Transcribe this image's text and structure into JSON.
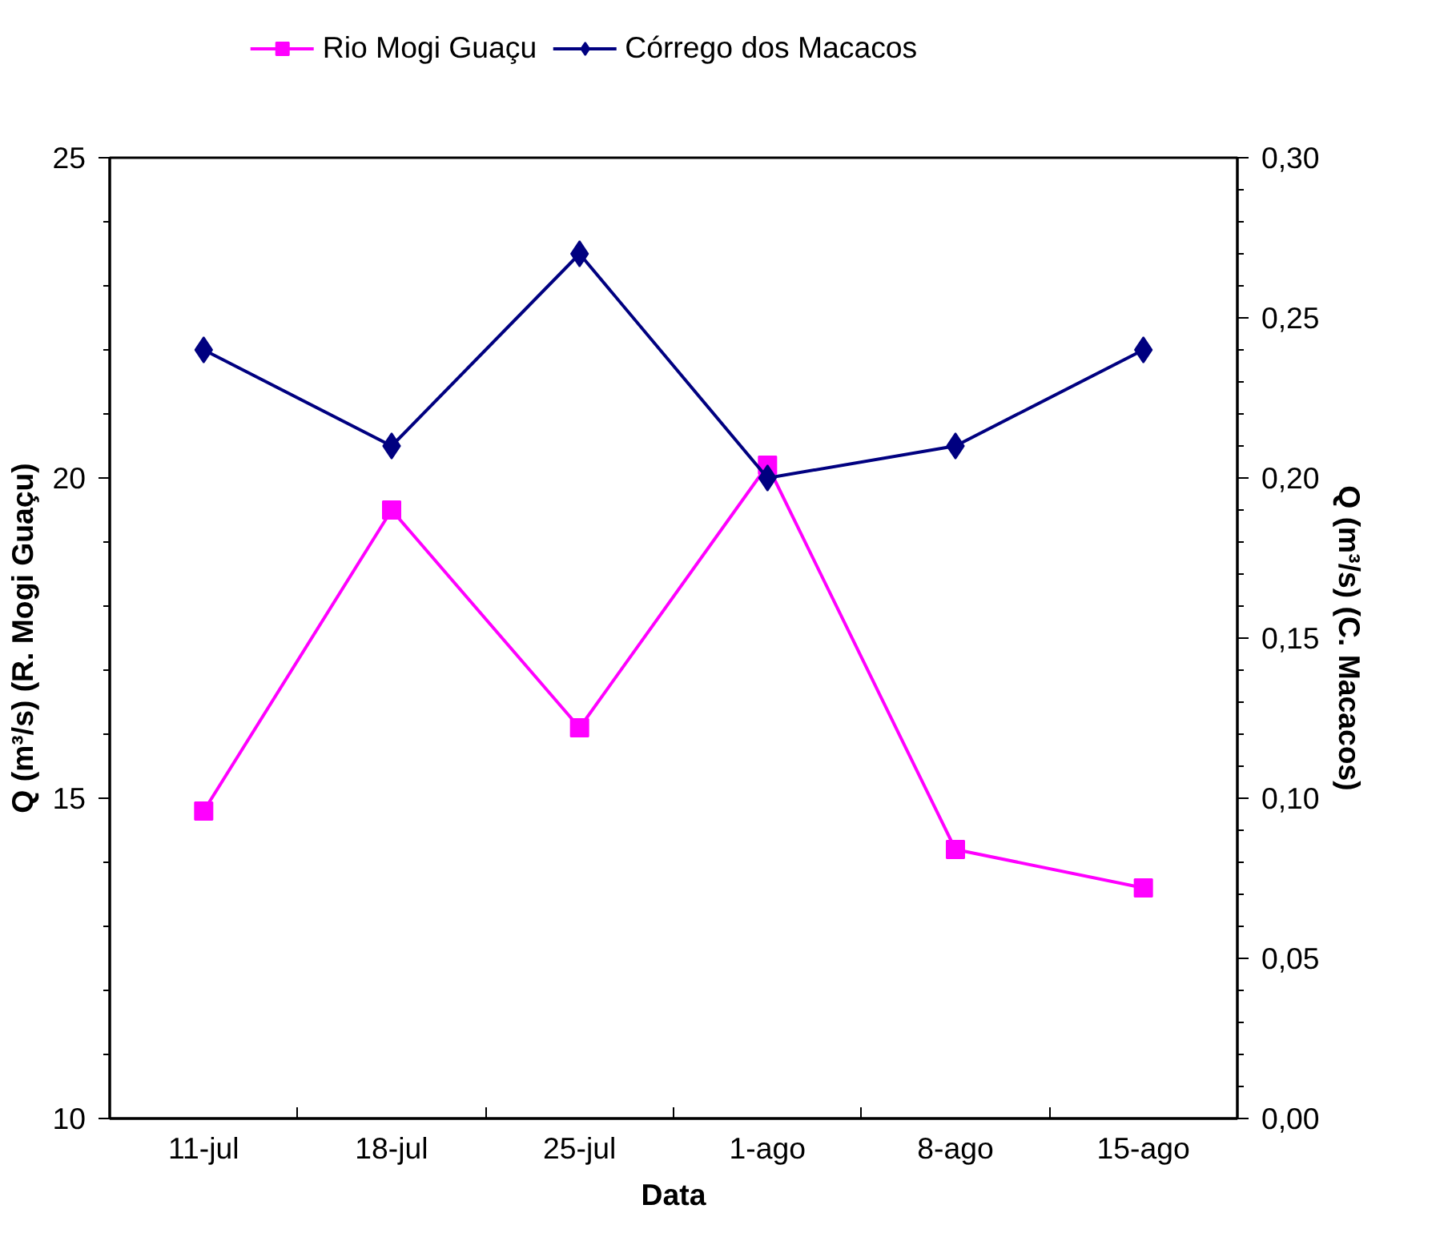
{
  "chart_data": {
    "type": "line",
    "categories": [
      "11-jul",
      "18-jul",
      "25-jul",
      "1-ago",
      "8-ago",
      "15-ago"
    ],
    "xlabel": "Data",
    "ylabel": "Q (m³/s) (R. Mogi Guaçu)",
    "y2label": "Q (m³/s) (C. Macacos)",
    "series": [
      {
        "name": "Rio Mogi Guaçu",
        "color": "#ff00ff",
        "marker": "square",
        "values": [
          14.8,
          19.5,
          16.1,
          20.2,
          14.2,
          13.6
        ]
      },
      {
        "name": "Córrego dos Macacos",
        "color": "#000080",
        "marker": "diamond",
        "axis": "y2",
        "values": [
          0.24,
          0.21,
          0.27,
          0.2,
          0.21,
          0.24
        ]
      }
    ],
    "ylim": [
      10,
      25
    ],
    "yticks": [
      10,
      15,
      20,
      25
    ],
    "y2lim": [
      0,
      0.3
    ],
    "y2ticks": [
      {
        "value": 0,
        "label": "0,00"
      },
      {
        "value": 0.05,
        "label": "0,05"
      },
      {
        "value": 0.1,
        "label": "0,10"
      },
      {
        "value": 0.15,
        "label": "0,15"
      },
      {
        "value": 0.2,
        "label": "0,20"
      },
      {
        "value": 0.25,
        "label": "0,25"
      },
      {
        "value": 0.3,
        "label": "0,30"
      }
    ],
    "grid": false,
    "legend": "top",
    "line_style": "solid"
  }
}
